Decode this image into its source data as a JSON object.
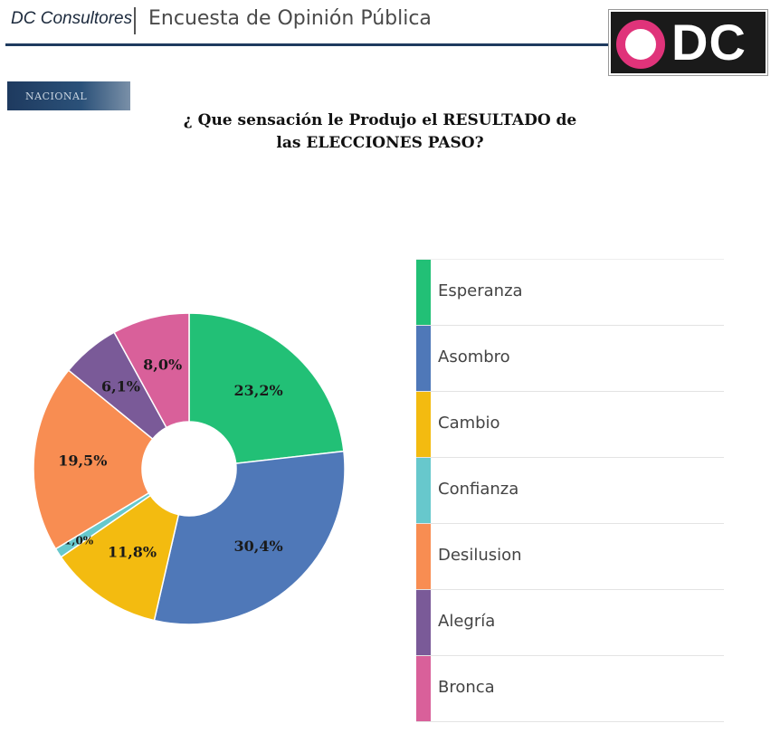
{
  "header": {
    "brand": "DC Consultores",
    "subtitle": "Encuesta de Opinión Pública",
    "logo_text": "DC"
  },
  "tag": "NACIONAL",
  "question_line1": "¿ Que sensación le Produjo el RESULTADO de",
  "question_line2": "las ELECCIONES PASO?",
  "chart_data": {
    "type": "pie",
    "donut": true,
    "legend_position": "right",
    "categories": [
      "Esperanza",
      "Asombro",
      "Cambio",
      "Confianza",
      "Desilusion",
      "Alegría",
      "Bronca"
    ],
    "values": [
      23.2,
      30.4,
      11.8,
      1.0,
      19.5,
      6.1,
      8.0
    ],
    "labels": [
      "23,2%",
      "30,4%",
      "11,8%",
      "1,0%",
      "19,5%",
      "6,1%",
      "8,0%"
    ],
    "colors": [
      "#22c076",
      "#4f78b8",
      "#f3bb10",
      "#67c8cc",
      "#f88d52",
      "#7a5a98",
      "#d9609a"
    ]
  }
}
